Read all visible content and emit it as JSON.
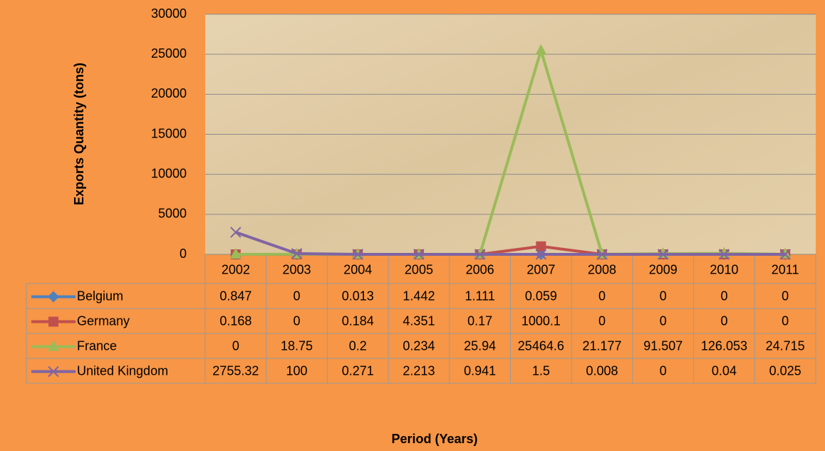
{
  "chart_data": {
    "type": "line",
    "y_label": "Exports Quantity (tons)",
    "x_label": "Period (Years)",
    "categories": [
      "2002",
      "2003",
      "2004",
      "2005",
      "2006",
      "2007",
      "2008",
      "2009",
      "2010",
      "2011"
    ],
    "series": [
      {
        "name": "Belgium",
        "color": "#4F81BD",
        "marker": "diamond",
        "values": [
          0.847,
          0,
          0.013,
          1.442,
          1.111,
          0.059,
          0,
          0,
          0,
          0
        ]
      },
      {
        "name": "Germany",
        "color": "#C0504D",
        "marker": "square",
        "values": [
          0.168,
          0,
          0.184,
          4.351,
          0.17,
          1000.1,
          0,
          0,
          0,
          0
        ]
      },
      {
        "name": "France",
        "color": "#9BBB59",
        "marker": "triangle",
        "values": [
          0,
          18.75,
          0.2,
          0.234,
          25.94,
          25464.6,
          21.177,
          91.507,
          126.053,
          24.715
        ]
      },
      {
        "name": "United Kingdom",
        "color": "#8064A2",
        "marker": "x",
        "values": [
          2755.32,
          100,
          0.271,
          2.213,
          0.941,
          1.5,
          0.008,
          0,
          0.04,
          0.025
        ]
      }
    ],
    "ylim": [
      0,
      30000
    ],
    "yticks": [
      0,
      5000,
      10000,
      15000,
      20000,
      25000,
      30000
    ],
    "grid": true,
    "data_table": true
  }
}
